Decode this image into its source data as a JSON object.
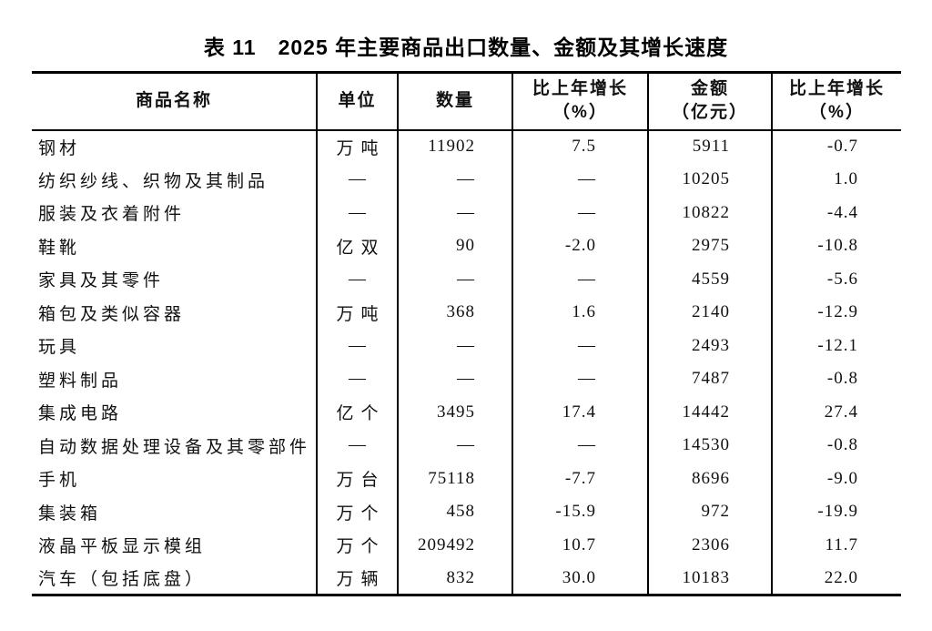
{
  "page": {
    "title": "表 11　2025 年主要商品出口数量、金额及其增长速度"
  },
  "table": {
    "headers": {
      "name": "商品名称",
      "unit": "单位",
      "qty": "数量",
      "qty_growth_line1": "比上年增长",
      "qty_growth_line2": "（%）",
      "amount_line1": "金额",
      "amount_line2": "（亿元）",
      "amount_growth_line1": "比上年增长",
      "amount_growth_line2": "（%）"
    },
    "placeholder": "—",
    "rows": [
      {
        "name": "钢材",
        "unit": "万吨",
        "qty": "11902",
        "qty_growth": "7.5",
        "amount": "5911",
        "amount_growth": "-0.7"
      },
      {
        "name": "纺织纱线、织物及其制品",
        "unit": "—",
        "qty": "—",
        "qty_growth": "—",
        "amount": "10205",
        "amount_growth": "1.0"
      },
      {
        "name": "服装及衣着附件",
        "unit": "—",
        "qty": "—",
        "qty_growth": "—",
        "amount": "10822",
        "amount_growth": "-4.4"
      },
      {
        "name": "鞋靴",
        "unit": "亿双",
        "qty": "90",
        "qty_growth": "-2.0",
        "amount": "2975",
        "amount_growth": "-10.8"
      },
      {
        "name": "家具及其零件",
        "unit": "—",
        "qty": "—",
        "qty_growth": "—",
        "amount": "4559",
        "amount_growth": "-5.6"
      },
      {
        "name": "箱包及类似容器",
        "unit": "万吨",
        "qty": "368",
        "qty_growth": "1.6",
        "amount": "2140",
        "amount_growth": "-12.9"
      },
      {
        "name": "玩具",
        "unit": "—",
        "qty": "—",
        "qty_growth": "—",
        "amount": "2493",
        "amount_growth": "-12.1"
      },
      {
        "name": "塑料制品",
        "unit": "—",
        "qty": "—",
        "qty_growth": "—",
        "amount": "7487",
        "amount_growth": "-0.8"
      },
      {
        "name": "集成电路",
        "unit": "亿个",
        "qty": "3495",
        "qty_growth": "17.4",
        "amount": "14442",
        "amount_growth": "27.4"
      },
      {
        "name": "自动数据处理设备及其零部件",
        "unit": "—",
        "qty": "—",
        "qty_growth": "—",
        "amount": "14530",
        "amount_growth": "-0.8"
      },
      {
        "name": "手机",
        "unit": "万台",
        "qty": "75118",
        "qty_growth": "-7.7",
        "amount": "8696",
        "amount_growth": "-9.0"
      },
      {
        "name": "集装箱",
        "unit": "万个",
        "qty": "458",
        "qty_growth": "-15.9",
        "amount": "972",
        "amount_growth": "-19.9"
      },
      {
        "name": "液晶平板显示模组",
        "unit": "万个",
        "qty": "209492",
        "qty_growth": "10.7",
        "amount": "2306",
        "amount_growth": "11.7"
      },
      {
        "name": "汽车（包括底盘）",
        "unit": "万辆",
        "qty": "832",
        "qty_growth": "30.0",
        "amount": "10183",
        "amount_growth": "22.0"
      }
    ]
  },
  "colors": {
    "text": "#111111",
    "border": "#000000",
    "background": "#ffffff"
  }
}
